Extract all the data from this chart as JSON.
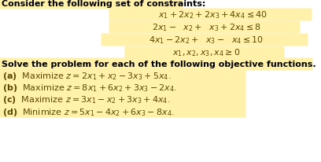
{
  "bg_color": "#ffffff",
  "highlight_color": "#FFF0AA",
  "text_color": "#5a4a00",
  "bold_color": "#000000",
  "figsize": [
    4.08,
    2.07
  ],
  "dpi": 100,
  "title": "Consider the following set of constraints:",
  "solve_line": "Solve the problem for each of the following objective functions.",
  "constraint1": "$x_1 + 2x_2 + 2x_3 + 4x_4 \\leq 40$",
  "constraint2": "$2x_1 -\\ \\ x_2 +\\ \\ x_3 + 2x_4 \\leq 8$",
  "constraint3": "$4x_1 - 2x_2 +\\ \\ x_3 -\\ \\ x_4 \\leq 10$",
  "constraint4": "$x_1, x_2, x_3, x_4 \\geq 0$",
  "obj_a": "$\\mathbf{(a)}$  Maximize $z = 2x_1 + x_2 - 3x_3 + 5x_4.$",
  "obj_b": "$\\mathbf{(b)}$  Maximize $z = 8x_1 + 6x_2 + 3x_3 - 2x_4.$",
  "obj_c": "$\\mathbf{(c)}$  Maximize $z = 3x_1 - x_2 + 3x_3 + 4x_4.$",
  "obj_d": "$\\mathbf{(d)}$  Minimize $z = 5x_1 - 4x_2 + 6x_3 - 8x_4.$"
}
